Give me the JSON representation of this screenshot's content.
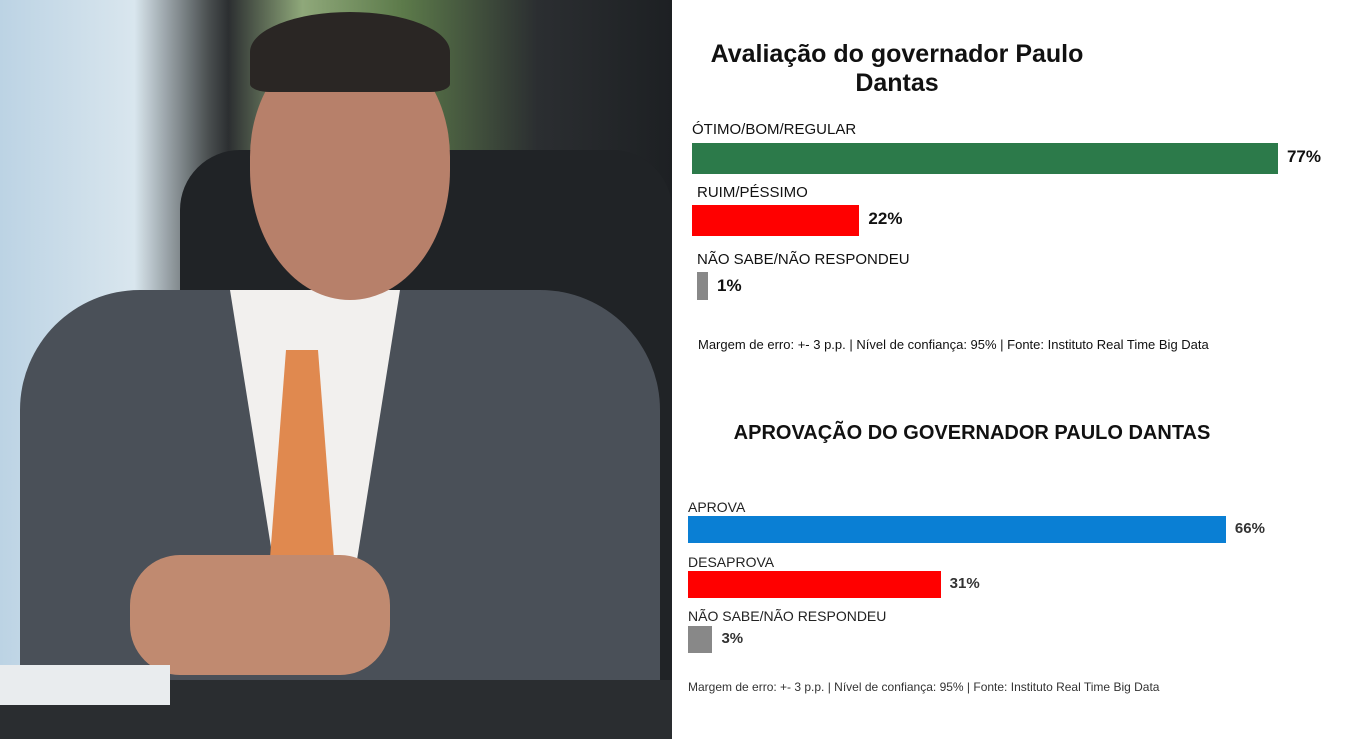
{
  "chart_data": [
    {
      "type": "bar",
      "orientation": "horizontal",
      "title": "Avaliação do governador Paulo Dantas",
      "categories": [
        "ÓTIMO/BOM/REGULAR",
        "RUIM/PÉSSIMO",
        "NÃO SABE/NÃO RESPONDEU"
      ],
      "values": [
        77,
        22,
        1
      ],
      "value_labels": [
        "77%",
        "22%",
        "1%"
      ],
      "colors": [
        "#2c7a4a",
        "#ff0000",
        "#888888"
      ],
      "footnote": "Margem de erro: +- 3 p.p. | Nível de confiança: 95% | Fonte: Instituto Real Time Big Data",
      "grid": false
    },
    {
      "type": "bar",
      "orientation": "horizontal",
      "title": "APROVAÇÃO DO GOVERNADOR PAULO DANTAS",
      "categories": [
        "APROVA",
        "DESAPROVA",
        "NÃO SABE/NÃO RESPONDEU"
      ],
      "values": [
        66,
        31,
        3
      ],
      "value_labels": [
        "66%",
        "31%",
        "3%"
      ],
      "colors": [
        "#0a7fd4",
        "#ff0000",
        "#888888"
      ],
      "footnote": "Margem de erro: +- 3 p.p. | Nível de confiança: 95% | Fonte: Instituto Real Time Big Data",
      "grid": false
    }
  ]
}
